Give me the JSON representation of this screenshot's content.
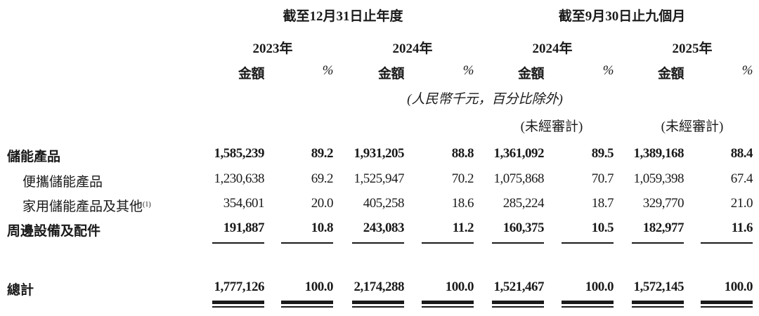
{
  "header": {
    "period_groups": [
      "截至12月31日止年度",
      "截至9月30日止九個月"
    ],
    "years": [
      "2023年",
      "2024年",
      "2024年",
      "2025年"
    ],
    "amount_label": "金額",
    "percent_label": "%",
    "unit_note": "(人民幣千元，百分比除外)",
    "unaudited": [
      "(未經審計)",
      "(未經審計)"
    ]
  },
  "rows": [
    {
      "label": "儲能產品",
      "bold": true,
      "values": [
        "1,585,239",
        "89.2",
        "1,931,205",
        "88.8",
        "1,361,092",
        "89.5",
        "1,389,168",
        "88.4"
      ]
    },
    {
      "label": "便攜儲能產品",
      "bold": false,
      "values": [
        "1,230,638",
        "69.2",
        "1,525,947",
        "70.2",
        "1,075,868",
        "70.7",
        "1,059,398",
        "67.4"
      ]
    },
    {
      "label": "家用儲能產品及其他",
      "footnote": "(1)",
      "bold": false,
      "values": [
        "354,601",
        "20.0",
        "405,258",
        "18.6",
        "285,224",
        "18.7",
        "329,770",
        "21.0"
      ]
    },
    {
      "label": "周邊設備及配件",
      "bold": true,
      "values": [
        "191,887",
        "10.8",
        "243,083",
        "11.2",
        "160,375",
        "10.5",
        "182,977",
        "11.6"
      ]
    }
  ],
  "total": {
    "label": "總計",
    "values": [
      "1,777,126",
      "100.0",
      "2,174,288",
      "100.0",
      "1,521,467",
      "100.0",
      "1,572,145",
      "100.0"
    ]
  }
}
